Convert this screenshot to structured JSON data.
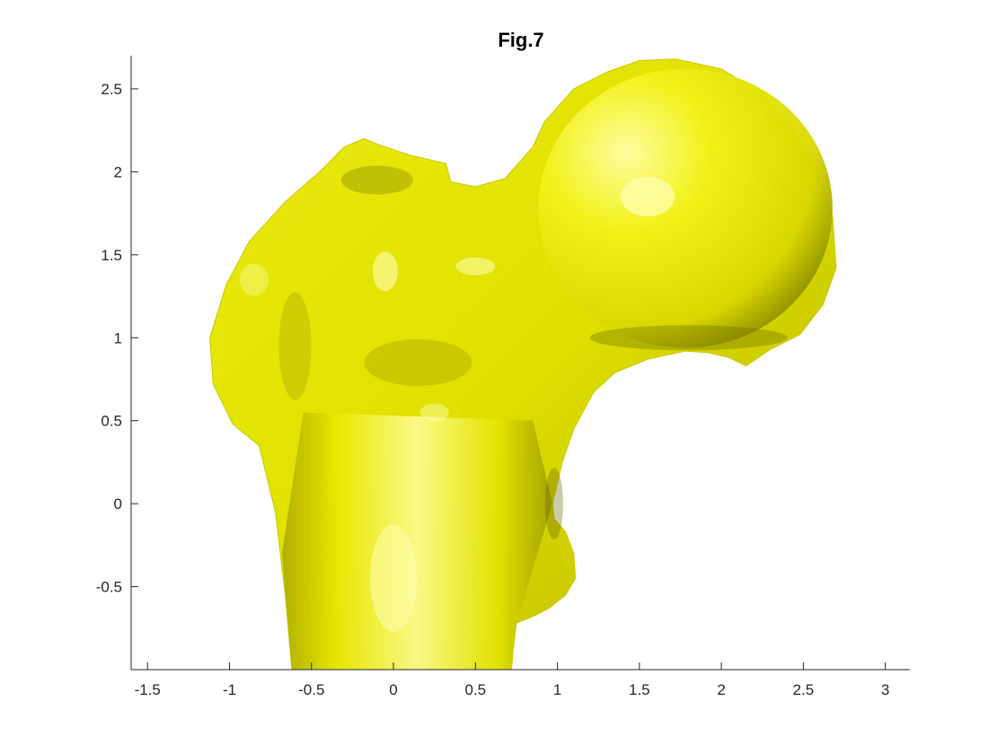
{
  "chart_data": {
    "type": "surface-3d",
    "title": "Fig.7",
    "xlabel": "",
    "ylabel": "",
    "xlim": [
      -1.6,
      3.15
    ],
    "ylim": [
      -1.0,
      2.7
    ],
    "x_ticks": [
      -1.5,
      -1,
      -0.5,
      0,
      0.5,
      1,
      1.5,
      2,
      2.5,
      3
    ],
    "x_tick_labels": [
      "-1.5",
      "-1",
      "-0.5",
      "0",
      "0.5",
      "1",
      "1.5",
      "2",
      "2.5",
      "3"
    ],
    "y_ticks": [
      -0.5,
      0,
      0.5,
      1,
      1.5,
      2,
      2.5
    ],
    "y_tick_labels": [
      "-0.5",
      "0",
      "0.5",
      "1",
      "1.5",
      "2",
      "2.5"
    ],
    "grid": false,
    "surface": {
      "description": "triangulated 3D mesh surface",
      "face_color": "#e6e600",
      "highlight_color": "#ffff99",
      "shadow_color": "#6b6b00",
      "outline": [
        [
          -0.62,
          -1.0
        ],
        [
          -0.66,
          -0.55
        ],
        [
          -0.72,
          -0.05
        ],
        [
          -0.82,
          0.35
        ],
        [
          -0.98,
          0.48
        ],
        [
          -1.1,
          0.72
        ],
        [
          -1.12,
          1.0
        ],
        [
          -1.02,
          1.32
        ],
        [
          -0.88,
          1.58
        ],
        [
          -0.66,
          1.82
        ],
        [
          -0.45,
          2.0
        ],
        [
          -0.3,
          2.15
        ],
        [
          -0.18,
          2.2
        ],
        [
          -0.08,
          2.16
        ],
        [
          0.1,
          2.1
        ],
        [
          0.32,
          2.05
        ],
        [
          0.35,
          1.94
        ],
        [
          0.5,
          1.91
        ],
        [
          0.68,
          1.96
        ],
        [
          0.85,
          2.15
        ],
        [
          0.92,
          2.3
        ],
        [
          1.1,
          2.5
        ],
        [
          1.3,
          2.6
        ],
        [
          1.5,
          2.67
        ],
        [
          1.72,
          2.68
        ],
        [
          2.0,
          2.62
        ],
        [
          2.25,
          2.47
        ],
        [
          2.42,
          2.28
        ],
        [
          2.58,
          2.05
        ],
        [
          2.68,
          1.72
        ],
        [
          2.7,
          1.42
        ],
        [
          2.62,
          1.2
        ],
        [
          2.48,
          1.02
        ],
        [
          2.3,
          0.93
        ],
        [
          2.15,
          0.83
        ],
        [
          2.05,
          0.88
        ],
        [
          1.92,
          0.91
        ],
        [
          1.78,
          0.92
        ],
        [
          1.55,
          0.87
        ],
        [
          1.35,
          0.79
        ],
        [
          1.22,
          0.67
        ],
        [
          1.1,
          0.45
        ],
        [
          1.03,
          0.25
        ],
        [
          0.97,
          0.0
        ],
        [
          0.98,
          -0.09
        ],
        [
          1.05,
          -0.17
        ],
        [
          1.1,
          -0.3
        ],
        [
          1.11,
          -0.45
        ],
        [
          1.05,
          -0.55
        ],
        [
          0.95,
          -0.63
        ],
        [
          0.85,
          -0.68
        ],
        [
          0.75,
          -0.72
        ],
        [
          0.73,
          -0.88
        ],
        [
          0.72,
          -1.0
        ]
      ]
    }
  }
}
